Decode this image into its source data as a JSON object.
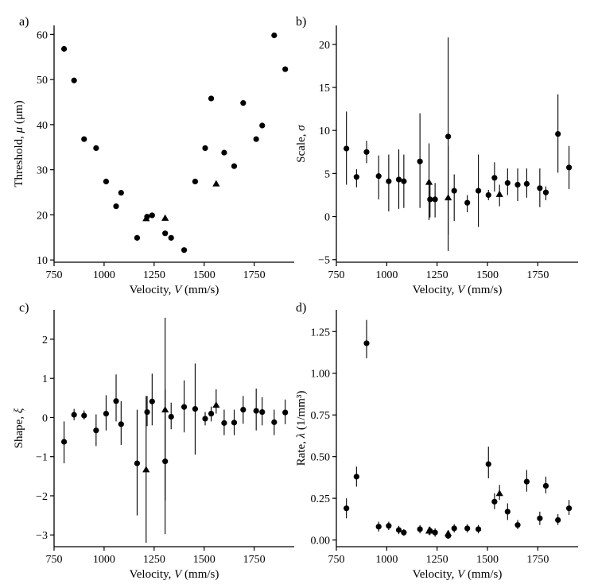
{
  "figure": {
    "colors": {
      "ink": "#000000",
      "background": "#ffffff"
    }
  },
  "chart_data": [
    {
      "type": "scatter",
      "panel_label": "a)",
      "title": "",
      "xlabel": "Velocity, V (mm/s)",
      "ylabel": "Threshold, μ (μm)",
      "xlim": [
        750,
        1950
      ],
      "ylim": [
        9.5,
        62
      ],
      "xticks": [
        750,
        1000,
        1250,
        1500,
        1750
      ],
      "xtick_labels": [
        "750",
        "1000",
        "1250",
        "1500",
        "1750"
      ],
      "yticks": [
        10,
        20,
        30,
        40,
        50,
        60
      ],
      "ytick_labels": [
        "10",
        "20",
        "30",
        "40",
        "50",
        "60"
      ],
      "series": [
        {
          "name": "circle",
          "marker": "circle",
          "x": [
            800,
            850,
            900,
            960,
            1010,
            1060,
            1085,
            1165,
            1215,
            1240,
            1305,
            1335,
            1400,
            1455,
            1505,
            1535,
            1600,
            1650,
            1695,
            1760,
            1790,
            1850,
            1905
          ],
          "y": [
            56.8,
            49.8,
            36.8,
            34.8,
            27.4,
            21.9,
            24.9,
            14.9,
            19.6,
            19.9,
            15.9,
            14.9,
            12.2,
            27.4,
            34.8,
            45.8,
            33.8,
            30.8,
            44.8,
            36.8,
            39.8,
            59.8,
            52.3
          ]
        },
        {
          "name": "triangle",
          "marker": "triangle",
          "x": [
            1210,
            1305,
            1560
          ],
          "y": [
            19.2,
            19.3,
            26.9
          ]
        }
      ]
    },
    {
      "type": "scatter",
      "panel_label": "b)",
      "title": "",
      "xlabel": "Velocity, V (mm/s)",
      "ylabel": "Scale, σ",
      "xlim": [
        750,
        1950
      ],
      "ylim": [
        -5.3,
        22.2
      ],
      "xticks": [
        750,
        1000,
        1250,
        1500,
        1750
      ],
      "xtick_labels": [
        "750",
        "1000",
        "1250",
        "1500",
        "1750"
      ],
      "yticks": [
        -5,
        0,
        5,
        10,
        15,
        20
      ],
      "ytick_labels": [
        "−5",
        "0",
        "5",
        "10",
        "15",
        "20"
      ],
      "series": [
        {
          "name": "circle",
          "marker": "circle",
          "x": [
            800,
            850,
            900,
            960,
            1010,
            1060,
            1085,
            1165,
            1215,
            1240,
            1305,
            1335,
            1400,
            1455,
            1505,
            1535,
            1600,
            1650,
            1695,
            1760,
            1790,
            1850,
            1905
          ],
          "y": [
            7.9,
            4.6,
            7.5,
            4.7,
            4.1,
            4.3,
            4.1,
            6.4,
            2.0,
            2.0,
            9.3,
            3.0,
            1.6,
            3.0,
            2.5,
            4.5,
            3.9,
            3.7,
            3.8,
            3.3,
            2.8,
            9.6,
            5.7
          ],
          "err_low": [
            3.7,
            3.4,
            6.2,
            2.0,
            0.6,
            0.9,
            1.0,
            1.0,
            -0.1,
            -0.1,
            -2.1,
            -0.5,
            0.5,
            -1.2,
            1.9,
            2.9,
            2.5,
            1.8,
            2.2,
            1.1,
            1.9,
            5.1,
            3.2
          ],
          "err_high": [
            12.2,
            5.5,
            8.8,
            7.1,
            7.2,
            7.8,
            7.2,
            12.0,
            3.9,
            3.9,
            20.8,
            4.9,
            2.5,
            7.2,
            3.1,
            6.3,
            5.6,
            5.6,
            5.6,
            5.6,
            3.5,
            14.2,
            8.2
          ]
        },
        {
          "name": "triangle",
          "marker": "triangle",
          "x": [
            1210,
            1305,
            1560
          ],
          "y": [
            4.0,
            2.2,
            2.6
          ],
          "err_low": [
            -0.4,
            -4.0,
            1.2
          ],
          "err_high": [
            8.5,
            8.2,
            3.7
          ]
        }
      ]
    },
    {
      "type": "scatter",
      "panel_label": "c)",
      "title": "",
      "xlabel": "Velocity, V (mm/s)",
      "ylabel": "Shape, ξ",
      "xlim": [
        750,
        1950
      ],
      "ylim": [
        -3.3,
        2.75
      ],
      "xticks": [
        750,
        1000,
        1250,
        1500,
        1750
      ],
      "xtick_labels": [
        "750",
        "1000",
        "1250",
        "1500",
        "1750"
      ],
      "yticks": [
        -3,
        -2,
        -1,
        0,
        1,
        2
      ],
      "ytick_labels": [
        "−3",
        "−2",
        "−1",
        "0",
        "1",
        "2"
      ],
      "series": [
        {
          "name": "circle",
          "marker": "circle",
          "x": [
            800,
            850,
            900,
            960,
            1010,
            1060,
            1085,
            1165,
            1215,
            1240,
            1305,
            1335,
            1400,
            1455,
            1505,
            1535,
            1600,
            1650,
            1695,
            1760,
            1790,
            1850,
            1905
          ],
          "y": [
            -0.62,
            0.07,
            0.05,
            -0.33,
            0.1,
            0.42,
            -0.17,
            -1.17,
            0.14,
            0.41,
            -1.12,
            0.02,
            0.27,
            0.22,
            -0.03,
            0.1,
            -0.14,
            -0.13,
            0.2,
            0.17,
            0.14,
            -0.12,
            0.13
          ],
          "err_low": [
            -1.17,
            -0.07,
            -0.05,
            -0.73,
            -0.33,
            -0.1,
            -0.7,
            -2.5,
            -0.22,
            -0.2,
            -2.98,
            -0.3,
            -0.38,
            -0.95,
            -0.2,
            -0.1,
            -0.45,
            -0.45,
            -0.16,
            -0.33,
            -0.2,
            -0.45,
            -0.17
          ],
          "err_high": [
            -0.1,
            0.22,
            0.18,
            0.08,
            0.57,
            1.1,
            0.42,
            0.2,
            0.55,
            1.12,
            0.72,
            0.38,
            0.95,
            1.38,
            0.14,
            0.28,
            0.2,
            0.2,
            0.55,
            0.74,
            0.52,
            0.2,
            0.46
          ]
        },
        {
          "name": "triangle",
          "marker": "triangle",
          "x": [
            1210,
            1305,
            1560
          ],
          "y": [
            -1.33,
            0.2,
            0.32
          ],
          "err_low": [
            -3.2,
            -2.12,
            0.1
          ],
          "err_high": [
            0.55,
            2.55,
            0.72
          ]
        }
      ]
    },
    {
      "type": "scatter",
      "panel_label": "d)",
      "title": "",
      "xlabel": "Velocity, V (mm/s)",
      "ylabel": "Rate, λ (1/mm³)",
      "xlim": [
        750,
        1950
      ],
      "ylim": [
        -0.04,
        1.38
      ],
      "xticks": [
        750,
        1000,
        1250,
        1500,
        1750
      ],
      "xtick_labels": [
        "750",
        "1000",
        "1250",
        "1500",
        "1750"
      ],
      "yticks": [
        0,
        0.25,
        0.5,
        0.75,
        1,
        1.25
      ],
      "ytick_labels": [
        "0.00",
        "0.25",
        "0.50",
        "0.75",
        "1.00",
        "1.25"
      ],
      "series": [
        {
          "name": "circle",
          "marker": "circle",
          "x": [
            800,
            850,
            900,
            960,
            1010,
            1060,
            1085,
            1165,
            1215,
            1240,
            1305,
            1335,
            1400,
            1455,
            1505,
            1535,
            1600,
            1650,
            1695,
            1760,
            1790,
            1850,
            1905
          ],
          "y": [
            0.19,
            0.38,
            1.18,
            0.08,
            0.085,
            0.06,
            0.045,
            0.065,
            0.055,
            0.045,
            0.025,
            0.07,
            0.07,
            0.065,
            0.455,
            0.23,
            0.17,
            0.09,
            0.35,
            0.13,
            0.325,
            0.12,
            0.19
          ],
          "err_low": [
            0.13,
            0.32,
            1.09,
            0.05,
            0.06,
            0.035,
            0.025,
            0.04,
            0.03,
            0.02,
            0.01,
            0.045,
            0.045,
            0.04,
            0.37,
            0.185,
            0.12,
            0.065,
            0.29,
            0.09,
            0.28,
            0.09,
            0.15
          ],
          "err_high": [
            0.25,
            0.44,
            1.32,
            0.11,
            0.11,
            0.085,
            0.065,
            0.09,
            0.08,
            0.07,
            0.04,
            0.095,
            0.095,
            0.09,
            0.56,
            0.28,
            0.22,
            0.12,
            0.42,
            0.17,
            0.38,
            0.155,
            0.24
          ]
        },
        {
          "name": "triangle",
          "marker": "triangle",
          "x": [
            1210,
            1305,
            1560
          ],
          "y": [
            0.055,
            0.04,
            0.28
          ],
          "err_low": [
            0.03,
            0.02,
            0.24
          ],
          "err_high": [
            0.08,
            0.06,
            0.33
          ]
        }
      ]
    }
  ]
}
